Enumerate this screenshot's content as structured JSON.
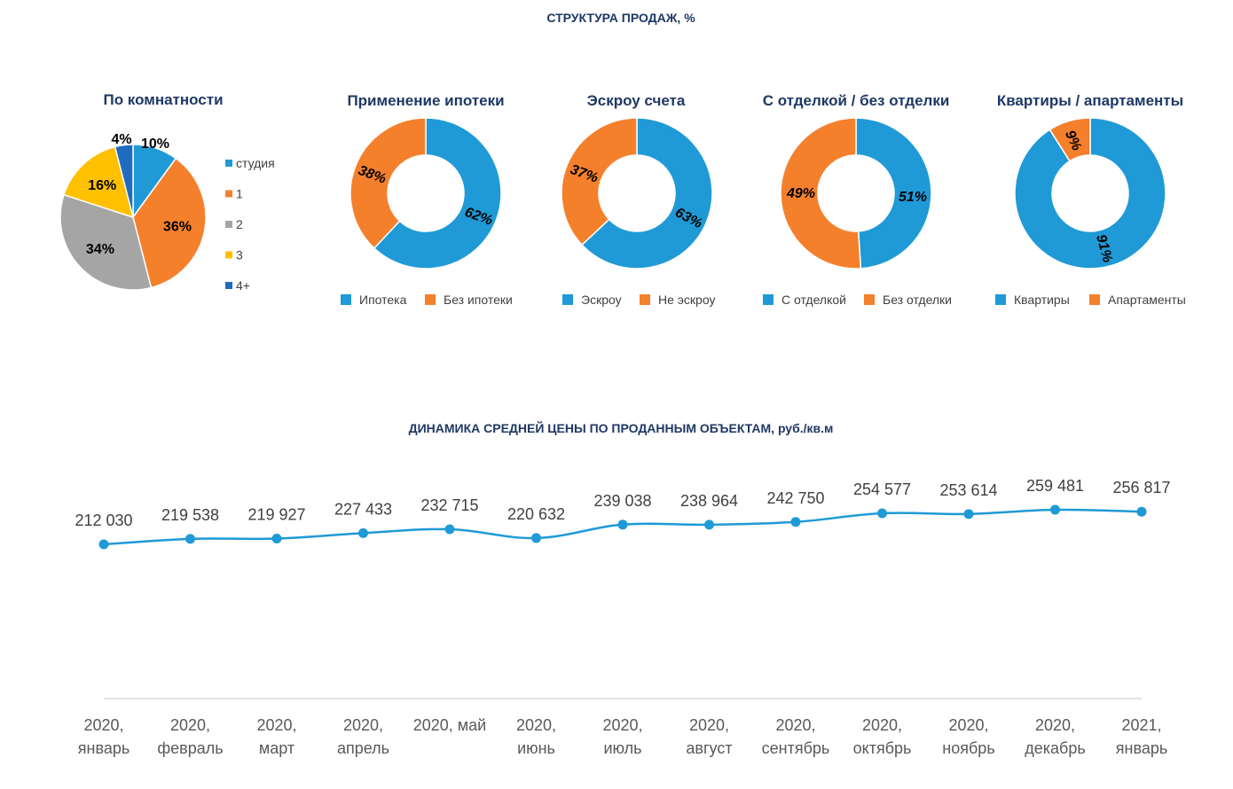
{
  "header": {
    "structure_title": "СТРУКТУРА ПРОДАЖ, %",
    "dynamics_title": "ДИНАМИКА СРЕДНЕЙ ЦЕНЫ ПО ПРОДАННЫМ ОБЪЕКТАМ, руб./кв.м"
  },
  "chart_data": [
    {
      "type": "pie",
      "title": "По комнатности",
      "categories": [
        "студия",
        "1",
        "2",
        "3",
        "4+"
      ],
      "values": [
        10,
        36,
        34,
        16,
        4
      ],
      "labels": [
        "10%",
        "36%",
        "34%",
        "16%",
        "4%"
      ],
      "colors": [
        "#1f9ad6",
        "#f4802c",
        "#a5a5a5",
        "#ffc000",
        "#1f6bc0"
      ],
      "legend": "right"
    },
    {
      "type": "donut",
      "title": "Применение ипотеки",
      "categories": [
        "Ипотека",
        "Без ипотеки"
      ],
      "values": [
        62,
        38
      ],
      "labels": [
        "62%",
        "38%"
      ],
      "colors": [
        "#1f9ad6",
        "#f4802c"
      ],
      "legend": "bottom"
    },
    {
      "type": "donut",
      "title": "Эскроу счета",
      "categories": [
        "Эскроу",
        "Не эскроу"
      ],
      "values": [
        63,
        37
      ],
      "labels": [
        "63%",
        "37%"
      ],
      "colors": [
        "#1f9ad6",
        "#f4802c"
      ],
      "legend": "bottom"
    },
    {
      "type": "donut",
      "title": "С отделкой / без отделки",
      "categories": [
        "С отделкой",
        "Без отделки"
      ],
      "values": [
        49,
        51
      ],
      "labels": [
        "49%",
        "51%"
      ],
      "colors": [
        "#1f9ad6",
        "#f4802c"
      ],
      "legend": "bottom"
    },
    {
      "type": "donut",
      "title": "Квартиры / апартаменты",
      "categories": [
        "Квартиры",
        "Апартаменты"
      ],
      "values": [
        91,
        9
      ],
      "labels": [
        "91%",
        "9%"
      ],
      "colors": [
        "#1f9ad6",
        "#f4802c"
      ],
      "legend": "bottom"
    },
    {
      "type": "line",
      "title": "ДИНАМИКА СРЕДНЕЙ ЦЕНЫ ПО ПРОДАННЫМ ОБЪЕКТАМ, руб./кв.м",
      "categories": [
        [
          "2020,",
          "январь"
        ],
        [
          "2020,",
          "февраль"
        ],
        [
          "2020,",
          "март"
        ],
        [
          "2020,",
          "апрель"
        ],
        [
          "2020, май"
        ],
        [
          "2020,",
          "июнь"
        ],
        [
          "2020,",
          "июль"
        ],
        [
          "2020,",
          "август"
        ],
        [
          "2020,",
          "сентябрь"
        ],
        [
          "2020,",
          "октябрь"
        ],
        [
          "2020,",
          "ноябрь"
        ],
        [
          "2020,",
          "декабрь"
        ],
        [
          "2021,",
          "январь"
        ]
      ],
      "values": [
        212030,
        219538,
        219927,
        227433,
        232715,
        220632,
        239038,
        238964,
        242750,
        254577,
        253614,
        259481,
        256817
      ],
      "value_labels": [
        "212 030",
        "219 538",
        "219 927",
        "227 433",
        "232 715",
        "220 632",
        "239 038",
        "238 964",
        "242 750",
        "254 577",
        "253 614",
        "259 481",
        "256 817"
      ],
      "color": "#1f9ad6",
      "grid": false
    }
  ]
}
